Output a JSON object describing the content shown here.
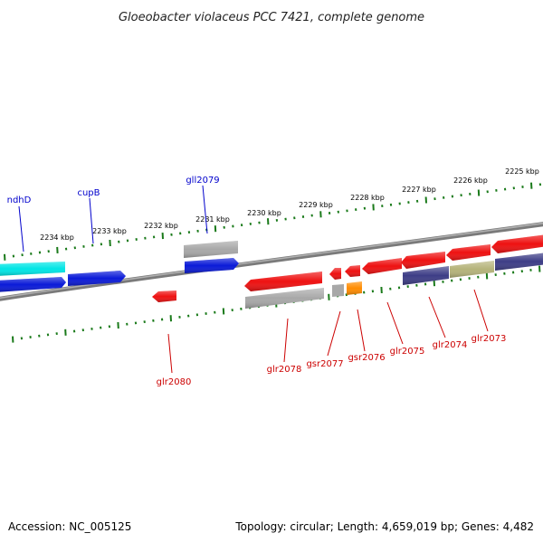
{
  "title": "Gloeobacter violaceus PCC 7421, complete genome",
  "footer": {
    "accession": "Accession: NC_005125",
    "summary": "Topology: circular; Length: 4,659,019 bp; Genes: 4,482"
  },
  "scale_labels": [
    "2225 kbp",
    "2226 kbp",
    "2227 kbp",
    "2228 kbp",
    "2229 kbp",
    "2230 kbp",
    "2231 kbp",
    "2232 kbp",
    "2233 kbp",
    "2234 kbp"
  ],
  "colors": {
    "backbone": "#888888",
    "tick": "#1a7a1a",
    "forward_label": "#0000cc",
    "reverse_label": "#cc0000",
    "cds_red": "#ee1111",
    "cds_blue": "#0a1ad8",
    "cds_cyan": "#00e5e5",
    "gray": "#a8a8a8",
    "navy": "#3d3d86",
    "olive": "#b5b37a",
    "orange": "#ff8c00"
  },
  "genes": {
    "forward": [
      "ndhD",
      "cupB",
      "gll2079"
    ],
    "reverse": [
      "glr2080",
      "glr2078",
      "gsr2077",
      "gsr2076",
      "glr2075",
      "glr2074",
      "glr2073"
    ]
  }
}
